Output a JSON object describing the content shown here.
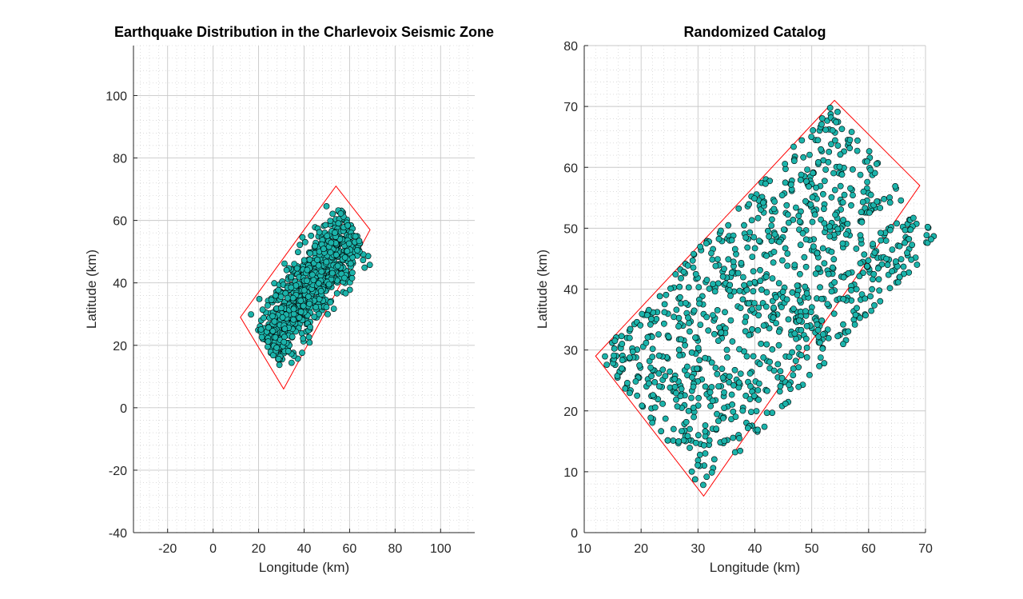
{
  "figure": {
    "background": "#ffffff",
    "colors": {
      "marker_fill": "#1bb3aa",
      "marker_edge": "#000000",
      "polygon": "#ff0000",
      "grid": "#c8c8c8",
      "axis": "#262626"
    }
  },
  "chart_data": [
    {
      "type": "scatter",
      "title": "Earthquake Distribution in the Charlevoix Seismic Zone",
      "xlabel": "Longitude (km)",
      "ylabel": "Latitude (km)",
      "xlim": [
        -35,
        115
      ],
      "ylim": [
        -40,
        116
      ],
      "xticks": [
        -20,
        0,
        20,
        40,
        60,
        80,
        100
      ],
      "yticks": [
        -40,
        -20,
        0,
        20,
        40,
        60,
        80,
        100
      ],
      "grid": "minor",
      "boundary_polygon": [
        [
          12,
          29
        ],
        [
          54,
          71
        ],
        [
          69,
          57
        ],
        [
          31,
          6
        ]
      ],
      "points": {
        "count": 1000,
        "distribution": "clustered along the zone axis within the polygon, denser at center",
        "approx_extent": {
          "x": [
            12,
            65
          ],
          "y": [
            9,
            67
          ]
        }
      }
    },
    {
      "type": "scatter",
      "title": "Randomized Catalog",
      "xlabel": "Longitude (km)",
      "ylabel": "Latitude (km)",
      "xlim": [
        10,
        70
      ],
      "ylim": [
        0,
        80
      ],
      "xticks": [
        10,
        20,
        30,
        40,
        50,
        60,
        70
      ],
      "yticks": [
        0,
        10,
        20,
        30,
        40,
        50,
        60,
        70,
        80
      ],
      "grid": "minor",
      "boundary_polygon": [
        [
          12,
          29
        ],
        [
          54,
          71
        ],
        [
          69,
          57
        ],
        [
          31,
          6
        ]
      ],
      "points": {
        "count": 1000,
        "distribution": "uniformly random within the polygon",
        "approx_extent": {
          "x": [
            12,
            69
          ],
          "y": [
            7,
            70
          ]
        }
      }
    }
  ]
}
